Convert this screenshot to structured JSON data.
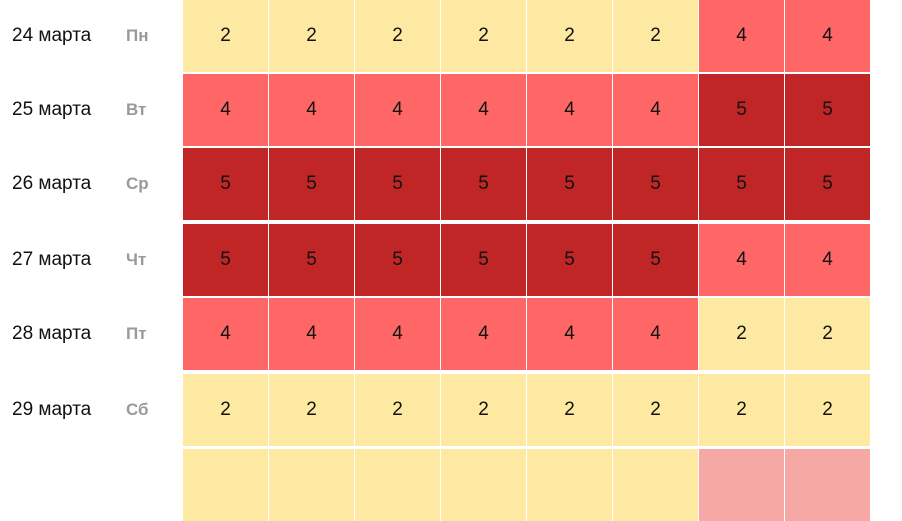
{
  "colors": {
    "1": "#f5a8a4",
    "2": "#fde9a2",
    "4": "#ff6666",
    "5": "#c02626"
  },
  "rows": [
    {
      "date": "24 марта",
      "dow": "Пн",
      "values": [
        2,
        2,
        2,
        2,
        2,
        2,
        4,
        4
      ]
    },
    {
      "date": "25 марта",
      "dow": "Вт",
      "values": [
        4,
        4,
        4,
        4,
        4,
        4,
        5,
        5
      ]
    },
    {
      "date": "26 марта",
      "dow": "Ср",
      "values": [
        5,
        5,
        5,
        5,
        5,
        5,
        5,
        5
      ]
    },
    {
      "date": "27 марта",
      "dow": "Чт",
      "values": [
        5,
        5,
        5,
        5,
        5,
        5,
        4,
        4
      ]
    },
    {
      "date": "28 марта",
      "dow": "Пт",
      "values": [
        4,
        4,
        4,
        4,
        4,
        4,
        2,
        2
      ]
    },
    {
      "date": "29 марта",
      "dow": "Сб",
      "values": [
        2,
        2,
        2,
        2,
        2,
        2,
        2,
        2
      ]
    }
  ],
  "partial_row_colors": [
    "2",
    "2",
    "2",
    "2",
    "2",
    "2",
    "1",
    "1"
  ]
}
